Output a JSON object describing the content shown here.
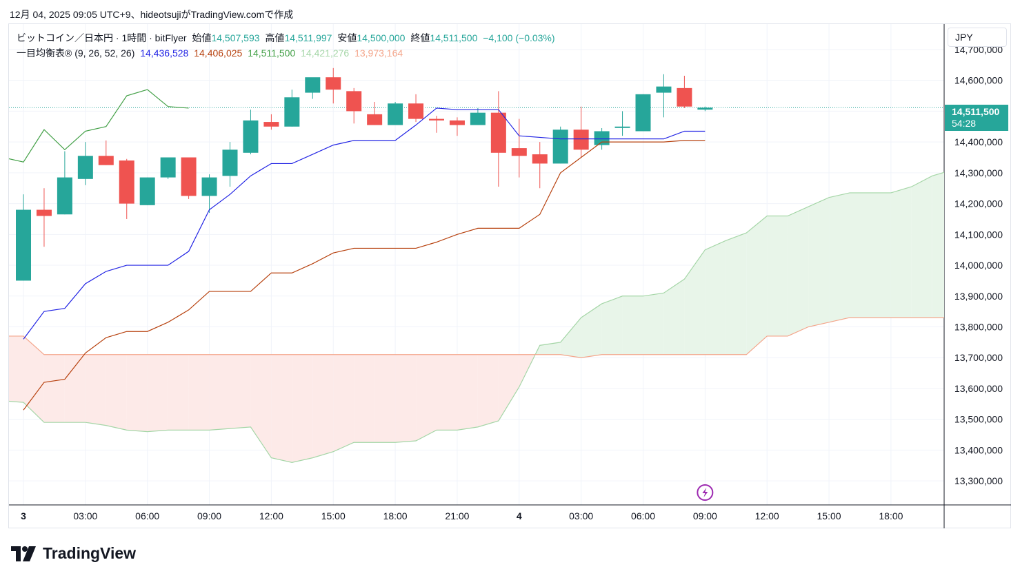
{
  "header": {
    "snapshot_text": "12月 04, 2025 09:05 UTC+9、hideotsujiがTradingView.comで作成"
  },
  "legend": {
    "symbol": "ビットコイン／日本円 · 1時間 · bitFlyer",
    "open_label": "始値",
    "open": "14,507,593",
    "high_label": "高値",
    "high": "14,511,997",
    "low_label": "安値",
    "low": "14,500,000",
    "close_label": "終値",
    "close": "14,511,500",
    "change": "−4,100 (−0.03%)",
    "indicator": "一目均衡表® (9, 26, 52, 26)",
    "tenkan": "14,436,528",
    "kijun": "14,406,025",
    "chikou": "14,511,500",
    "span_a": "14,421,276",
    "span_b": "13,973,164"
  },
  "currency": "JPY",
  "price_badge": {
    "price": "14,511,500",
    "countdown": "54:28"
  },
  "footer": {
    "brand": "TradingView"
  },
  "colors": {
    "up": "#26a69a",
    "down": "#ef5350",
    "tenkan": "#2123e4",
    "kijun": "#b7410e",
    "chikou": "#43a047",
    "span_a": "#a5d6a7",
    "span_b": "#f4a58a",
    "cloud_bull": "#e8f5e9",
    "cloud_bear": "#fdeae8"
  },
  "chart_data": {
    "type": "candlestick",
    "x_ticks": [
      "3",
      "03:00",
      "06:00",
      "09:00",
      "12:00",
      "15:00",
      "18:00",
      "21:00",
      "4",
      "03:00",
      "06:00",
      "09:00",
      "12:00",
      "15:00",
      "18:00"
    ],
    "y_ticks": [
      "14,700,000",
      "14,600,000",
      "14,500,000",
      "14,400,000",
      "14,300,000",
      "14,200,000",
      "14,100,000",
      "14,000,000",
      "13,900,000",
      "13,800,000",
      "13,700,000",
      "13,600,000",
      "13,500,000",
      "13,400,000",
      "13,300,000"
    ],
    "ylim": [
      13240000,
      14720000
    ],
    "bar_interval_hours": 1,
    "candles": [
      {
        "o": 13950000,
        "h": 14230000,
        "l": 13950000,
        "c": 14180000
      },
      {
        "o": 14180000,
        "h": 14250000,
        "l": 14060000,
        "c": 14160000
      },
      {
        "o": 14165000,
        "h": 14370000,
        "l": 14165000,
        "c": 14285000
      },
      {
        "o": 14280000,
        "h": 14400000,
        "l": 14260000,
        "c": 14355000
      },
      {
        "o": 14355000,
        "h": 14405000,
        "l": 14325000,
        "c": 14325000
      },
      {
        "o": 14340000,
        "h": 14345000,
        "l": 14150000,
        "c": 14200000
      },
      {
        "o": 14195000,
        "h": 14285000,
        "l": 14195000,
        "c": 14285000
      },
      {
        "o": 14285000,
        "h": 14350000,
        "l": 14280000,
        "c": 14350000
      },
      {
        "o": 14350000,
        "h": 14350000,
        "l": 14215000,
        "c": 14225000
      },
      {
        "o": 14225000,
        "h": 14295000,
        "l": 14170000,
        "c": 14285000
      },
      {
        "o": 14290000,
        "h": 14400000,
        "l": 14255000,
        "c": 14375000
      },
      {
        "o": 14365000,
        "h": 14505000,
        "l": 14360000,
        "c": 14470000
      },
      {
        "o": 14465000,
        "h": 14490000,
        "l": 14440000,
        "c": 14450000
      },
      {
        "o": 14450000,
        "h": 14570000,
        "l": 14450000,
        "c": 14545000
      },
      {
        "o": 14560000,
        "h": 14605000,
        "l": 14540000,
        "c": 14610000
      },
      {
        "o": 14610000,
        "h": 14640000,
        "l": 14525000,
        "c": 14570000
      },
      {
        "o": 14565000,
        "h": 14575000,
        "l": 14460000,
        "c": 14500000
      },
      {
        "o": 14490000,
        "h": 14530000,
        "l": 14455000,
        "c": 14455000
      },
      {
        "o": 14455000,
        "h": 14530000,
        "l": 14455000,
        "c": 14525000
      },
      {
        "o": 14525000,
        "h": 14555000,
        "l": 14465000,
        "c": 14475000
      },
      {
        "o": 14475000,
        "h": 14485000,
        "l": 14430000,
        "c": 14470000
      },
      {
        "o": 14470000,
        "h": 14480000,
        "l": 14420000,
        "c": 14455000
      },
      {
        "o": 14455000,
        "h": 14510000,
        "l": 14455000,
        "c": 14495000
      },
      {
        "o": 14495000,
        "h": 14565000,
        "l": 14255000,
        "c": 14365000
      },
      {
        "o": 14380000,
        "h": 14475000,
        "l": 14285000,
        "c": 14355000
      },
      {
        "o": 14360000,
        "h": 14400000,
        "l": 14250000,
        "c": 14330000
      },
      {
        "o": 14330000,
        "h": 14450000,
        "l": 14330000,
        "c": 14440000
      },
      {
        "o": 14440000,
        "h": 14515000,
        "l": 14350000,
        "c": 14375000
      },
      {
        "o": 14390000,
        "h": 14445000,
        "l": 14375000,
        "c": 14435000
      },
      {
        "o": 14450000,
        "h": 14500000,
        "l": 14420000,
        "c": 14450000
      },
      {
        "o": 14435000,
        "h": 14555000,
        "l": 14435000,
        "c": 14555000
      },
      {
        "o": 14560000,
        "h": 14620000,
        "l": 14480000,
        "c": 14580000
      },
      {
        "o": 14575000,
        "h": 14615000,
        "l": 14510000,
        "c": 14515000
      },
      {
        "o": 14505000,
        "h": 14515000,
        "l": 14500000,
        "c": 14511500
      }
    ],
    "tenkan_sen": [
      13760000,
      13850000,
      13860000,
      13940000,
      13980000,
      14000000,
      14000000,
      14000000,
      14045000,
      14180000,
      14230000,
      14290000,
      14330000,
      14330000,
      14360000,
      14390000,
      14405000,
      14405000,
      14405000,
      14455000,
      14510000,
      14505000,
      14505000,
      14505000,
      14420000,
      14415000,
      14410000,
      14410000,
      14410000,
      14410000,
      14410000,
      14410000,
      14435000,
      14435000
    ],
    "kijun_sen": [
      13530000,
      13620000,
      13630000,
      13715000,
      13765000,
      13785000,
      13785000,
      13815000,
      13855000,
      13915000,
      13915000,
      13915000,
      13975000,
      13975000,
      14005000,
      14040000,
      14055000,
      14055000,
      14055000,
      14055000,
      14075000,
      14100000,
      14120000,
      14120000,
      14120000,
      14165000,
      14300000,
      14350000,
      14400000,
      14400000,
      14400000,
      14400000,
      14405000,
      14405000
    ],
    "chikou_span": [
      14350000,
      14335000,
      14440000,
      14375000,
      14435000,
      14450000,
      14550000,
      14570000,
      14515000,
      14510000
    ],
    "senkou_span_a": [
      13560000,
      13555000,
      13490000,
      13490000,
      13490000,
      13480000,
      13465000,
      13460000,
      13465000,
      13465000,
      13465000,
      13470000,
      13475000,
      13375000,
      13360000,
      13375000,
      13395000,
      13425000,
      13425000,
      13425000,
      13430000,
      13465000,
      13465000,
      13475000,
      13495000,
      13605000,
      13740000,
      13750000,
      13830000,
      13875000,
      13900000,
      13900000,
      13910000,
      13955000,
      14050000,
      14080000,
      14105000,
      14160000,
      14160000,
      14190000,
      14220000,
      14235000,
      14235000,
      14235000,
      14255000,
      14290000,
      14310000
    ],
    "senkou_span_b": [
      13770000,
      13770000,
      13710000,
      13710000,
      13710000,
      13710000,
      13710000,
      13710000,
      13710000,
      13710000,
      13710000,
      13710000,
      13710000,
      13710000,
      13710000,
      13710000,
      13710000,
      13710000,
      13710000,
      13710000,
      13710000,
      13710000,
      13710000,
      13710000,
      13710000,
      13710000,
      13710000,
      13710000,
      13700000,
      13710000,
      13710000,
      13710000,
      13710000,
      13710000,
      13710000,
      13710000,
      13710000,
      13770000,
      13770000,
      13800000,
      13815000,
      13830000,
      13830000,
      13830000,
      13830000,
      13830000,
      13830000
    ],
    "last_price": 14511500
  }
}
